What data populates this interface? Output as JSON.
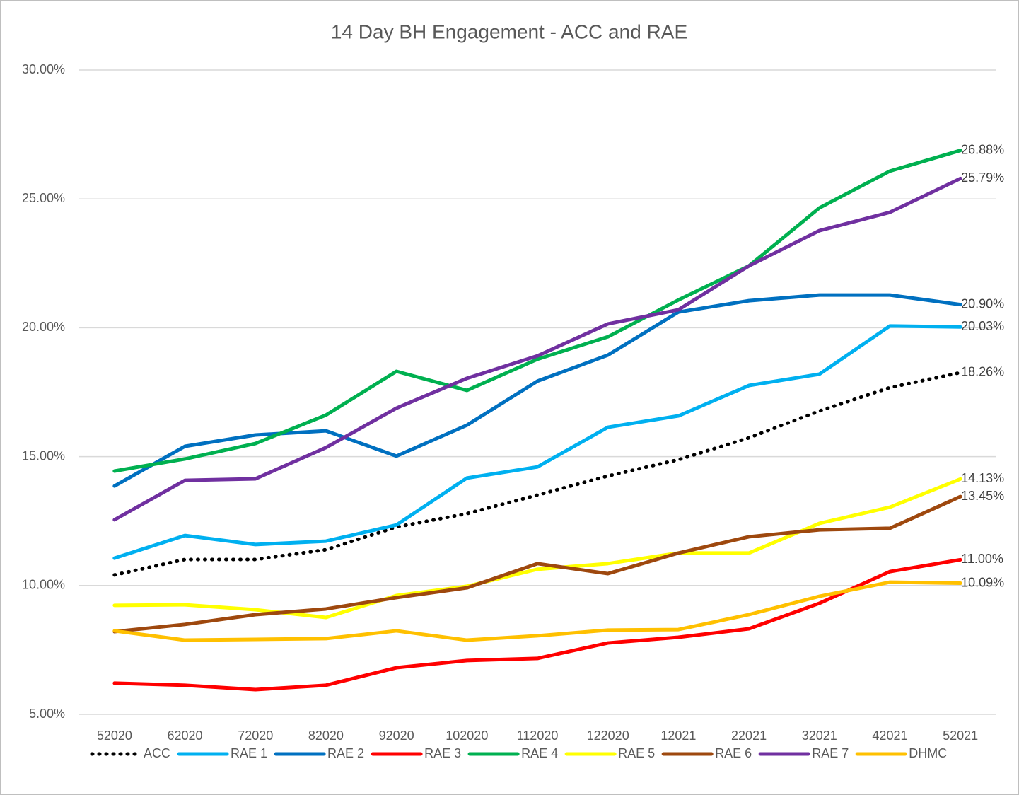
{
  "chart_data": {
    "type": "line",
    "title": "14 Day BH Engagement - ACC and RAE",
    "categories": [
      "52020",
      "62020",
      "72020",
      "82020",
      "92020",
      "102020",
      "112020",
      "122020",
      "12021",
      "22021",
      "32021",
      "42021",
      "52021"
    ],
    "ylim": [
      5,
      30
    ],
    "yticks": [
      {
        "value": 5,
        "label": "5.00%"
      },
      {
        "value": 10,
        "label": "10.00%"
      },
      {
        "value": 15,
        "label": "15.00%"
      },
      {
        "value": 20,
        "label": "20.00%"
      },
      {
        "value": 25,
        "label": "25.00%"
      },
      {
        "value": 30,
        "label": "30.00%"
      }
    ],
    "grid": true,
    "legend": "bottom",
    "series": [
      {
        "name": "ACC",
        "color": "#000000",
        "style": "dotted",
        "values": [
          10.41,
          11.01,
          11.01,
          11.39,
          12.27,
          12.79,
          13.51,
          14.25,
          14.88,
          15.73,
          16.77,
          17.68,
          18.26
        ],
        "value_labels": [
          null,
          null,
          null,
          null,
          null,
          null,
          null,
          null,
          null,
          null,
          null,
          null,
          "18.26%"
        ]
      },
      {
        "name": "RAE 1",
        "color": "#00b0f0",
        "values": [
          11.06,
          11.94,
          11.59,
          11.72,
          12.35,
          14.17,
          14.6,
          16.14,
          16.58,
          17.76,
          18.2,
          20.07,
          20.03
        ],
        "value_labels": [
          null,
          null,
          null,
          null,
          null,
          null,
          null,
          null,
          null,
          null,
          null,
          null,
          "20.03%"
        ]
      },
      {
        "name": "RAE 2",
        "color": "#0070c0",
        "values": [
          13.86,
          15.4,
          15.84,
          16.0,
          15.02,
          16.22,
          17.93,
          18.94,
          20.61,
          21.05,
          21.27,
          21.27,
          20.9
        ],
        "value_labels": [
          null,
          null,
          null,
          null,
          null,
          null,
          null,
          null,
          null,
          null,
          null,
          null,
          "20.90%"
        ]
      },
      {
        "name": "RAE 3",
        "color": "#ff0000",
        "values": [
          6.21,
          6.13,
          5.96,
          6.13,
          6.81,
          7.09,
          7.17,
          7.77,
          7.99,
          8.32,
          9.31,
          10.54,
          11.0
        ],
        "value_labels": [
          null,
          null,
          null,
          null,
          null,
          null,
          null,
          null,
          null,
          null,
          null,
          null,
          "11.00%"
        ]
      },
      {
        "name": "RAE 4",
        "color": "#00b050",
        "values": [
          14.44,
          14.91,
          15.51,
          16.61,
          18.31,
          17.57,
          18.78,
          19.65,
          21.08,
          22.4,
          24.65,
          26.08,
          26.88
        ],
        "value_labels": [
          null,
          null,
          null,
          null,
          null,
          null,
          null,
          null,
          null,
          null,
          null,
          null,
          "26.88%"
        ]
      },
      {
        "name": "RAE 5",
        "color": "#ffff00",
        "values": [
          9.23,
          9.25,
          9.06,
          8.76,
          9.61,
          9.97,
          10.63,
          10.85,
          11.26,
          11.26,
          12.41,
          13.04,
          14.13
        ],
        "value_labels": [
          null,
          null,
          null,
          null,
          null,
          null,
          null,
          null,
          null,
          null,
          null,
          null,
          "14.13%"
        ]
      },
      {
        "name": "RAE 6",
        "color": "#9e480e",
        "values": [
          8.21,
          8.49,
          8.87,
          9.09,
          9.53,
          9.91,
          10.85,
          10.46,
          11.26,
          11.89,
          12.16,
          12.22,
          13.45
        ],
        "value_labels": [
          null,
          null,
          null,
          null,
          null,
          null,
          null,
          null,
          null,
          null,
          null,
          null,
          "13.45%"
        ]
      },
      {
        "name": "RAE 7",
        "color": "#7030a0",
        "values": [
          12.55,
          14.08,
          14.14,
          15.35,
          16.88,
          18.04,
          18.91,
          20.15,
          20.7,
          22.4,
          23.77,
          24.48,
          25.79
        ],
        "value_labels": [
          null,
          null,
          null,
          null,
          null,
          null,
          null,
          null,
          null,
          null,
          null,
          null,
          "25.79%"
        ]
      },
      {
        "name": "DHMC",
        "color": "#ffc000",
        "values": [
          8.24,
          7.88,
          7.91,
          7.94,
          8.24,
          7.88,
          8.05,
          8.27,
          8.29,
          8.87,
          9.58,
          10.13,
          10.09
        ],
        "value_labels": [
          null,
          null,
          null,
          null,
          null,
          null,
          null,
          null,
          null,
          null,
          null,
          null,
          "10.09%"
        ]
      }
    ]
  }
}
